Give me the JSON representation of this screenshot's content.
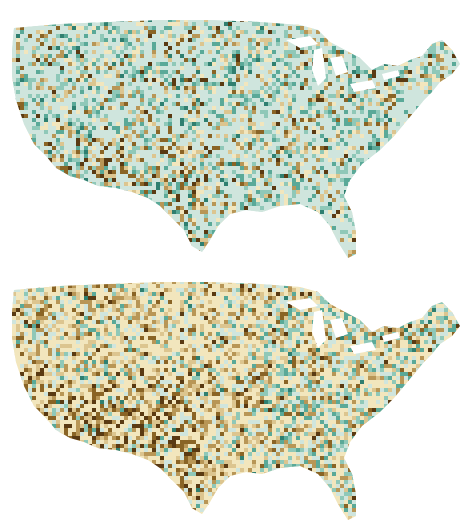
{
  "colors": {
    "background": "#ffffff",
    "palette": [
      "#5a3a12",
      "#8a6425",
      "#b89656",
      "#dcc58f",
      "#f2e6bd",
      "#cfe5dd",
      "#8fc8b8",
      "#5aa998",
      "#2f7f70"
    ]
  },
  "maps": [
    {
      "id": "top",
      "dominant": "teal",
      "weights": [
        0.02,
        0.03,
        0.04,
        0.05,
        0.08,
        0.55,
        0.12,
        0.09,
        0.02
      ]
    },
    {
      "id": "bottom",
      "dominant": "tan",
      "weights": [
        0.03,
        0.06,
        0.12,
        0.14,
        0.42,
        0.14,
        0.05,
        0.03,
        0.01
      ]
    }
  ]
}
